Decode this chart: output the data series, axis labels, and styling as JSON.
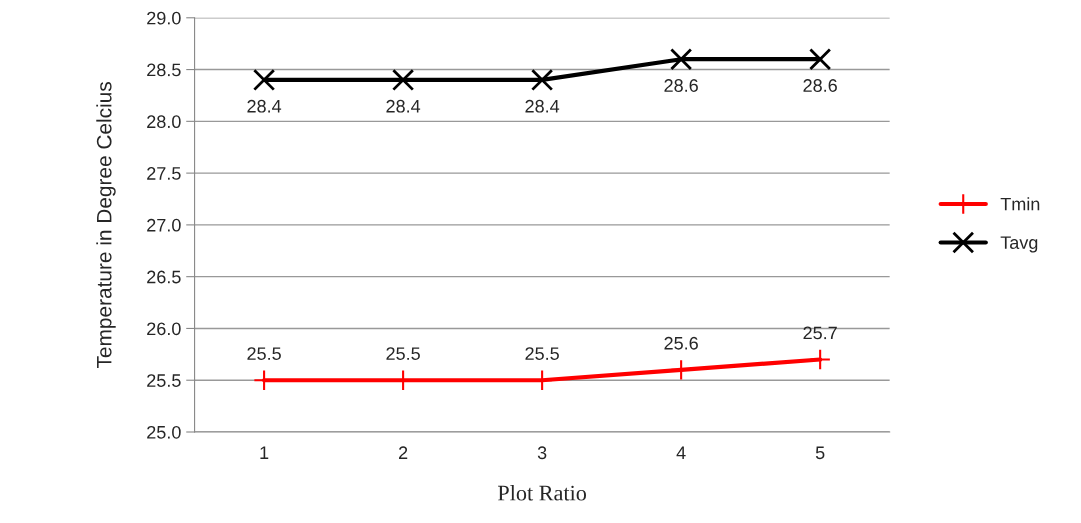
{
  "chart_data": {
    "type": "line",
    "xlabel": "Plot Ratio",
    "ylabel": "Temperature in Degree Celcius",
    "categories": [
      "1",
      "2",
      "3",
      "4",
      "5"
    ],
    "series": [
      {
        "name": "Tmin",
        "color": "#ff0000",
        "marker": "plus",
        "values": [
          25.5,
          25.5,
          25.5,
          25.6,
          25.7
        ]
      },
      {
        "name": "Tavg",
        "color": "#000000",
        "marker": "cross",
        "values": [
          28.4,
          28.4,
          28.4,
          28.6,
          28.6
        ]
      }
    ],
    "ylim": [
      25.0,
      29.0
    ],
    "yticks": [
      {
        "value": 25.0,
        "label": "25.0"
      },
      25.5,
      {
        "value": 26.0,
        "label": "26.0"
      },
      26.5,
      {
        "value": 27.0,
        "label": "27.0"
      },
      27.5,
      {
        "value": 28.0,
        "label": "28.0"
      },
      28.5,
      {
        "value": 29.0,
        "label": "29.0"
      }
    ],
    "grid": "y",
    "legend": "right",
    "data_labels": true,
    "line_style": "solid"
  }
}
